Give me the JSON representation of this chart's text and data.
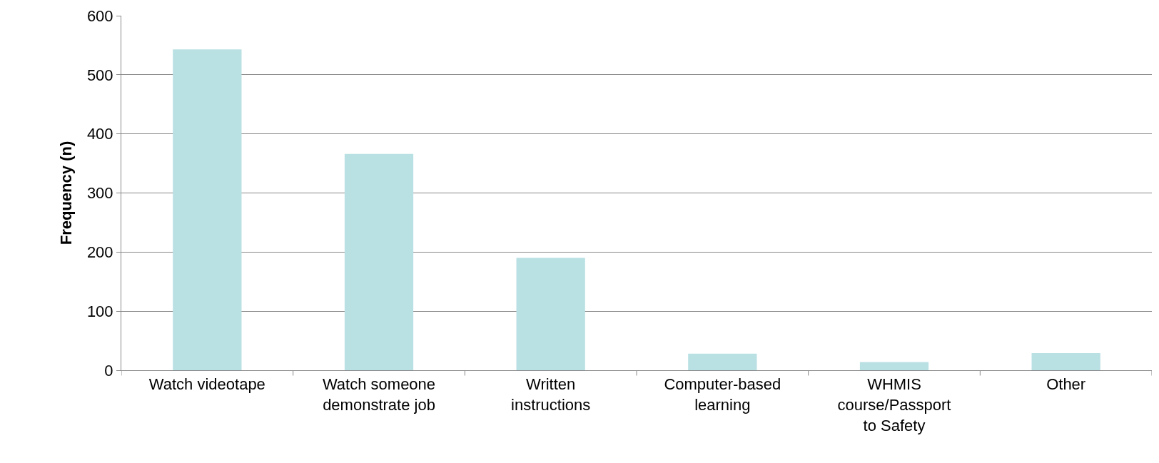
{
  "chart_data": {
    "type": "bar",
    "ylabel": "Frequency (n)",
    "categories": [
      "Watch videotape",
      "Watch someone\ndemonstrate job",
      "Written\ninstructions",
      "Computer-based\nlearning",
      "WHMIS\ncourse/Passport\nto Safety",
      "Other"
    ],
    "values": [
      543,
      366,
      190,
      28,
      14,
      29
    ],
    "color": "#b9e0e3",
    "ylim": [
      0,
      600
    ],
    "yticks": [
      0,
      100,
      200,
      300,
      400,
      500,
      600
    ],
    "grid": "y"
  }
}
